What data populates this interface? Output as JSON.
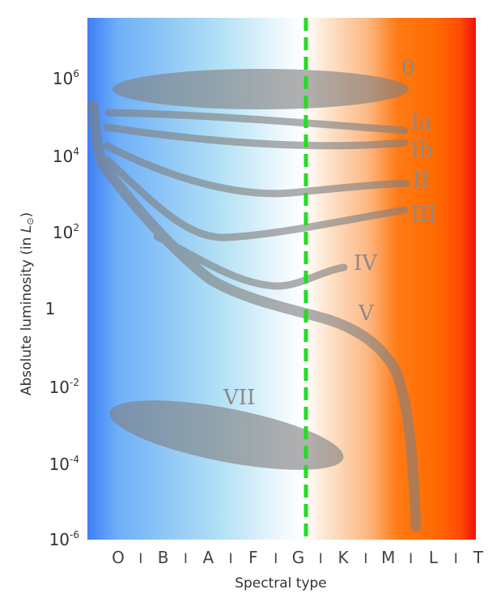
{
  "y_axis": {
    "label_main": "Absolute luminosity  (in ",
    "label_symbol": "L",
    "label_sub": "⊙",
    "label_close": ")",
    "ticks": [
      {
        "base": "10",
        "exp": "6"
      },
      {
        "base": "10",
        "exp": "4"
      },
      {
        "base": "10",
        "exp": "2"
      },
      {
        "base": "1",
        "exp": ""
      },
      {
        "base": "10",
        "exp": "-2"
      },
      {
        "base": "10",
        "exp": "-4"
      },
      {
        "base": "10",
        "exp": "-6"
      }
    ]
  },
  "x_axis": {
    "label": "Spectral type",
    "ticks": [
      "O",
      "I",
      "B",
      "I",
      "A",
      "I",
      "F",
      "I",
      "G",
      "I",
      "K",
      "I",
      "M",
      "I",
      "L",
      "I",
      "T"
    ]
  },
  "luminosity_classes": [
    "0",
    "Ia",
    "Ib",
    "II",
    "III",
    "IV",
    "V",
    "VII"
  ],
  "colors": {
    "blue": "#3f7ff7",
    "light_blue": "#a9ddf5",
    "white": "#ffffff",
    "peach": "#fdd3b2",
    "orange": "#ff6a00",
    "red": "#f30f0f",
    "sun_line": "#22dd22",
    "bands": "#808080",
    "class_labels": "#8a8a8a"
  }
}
